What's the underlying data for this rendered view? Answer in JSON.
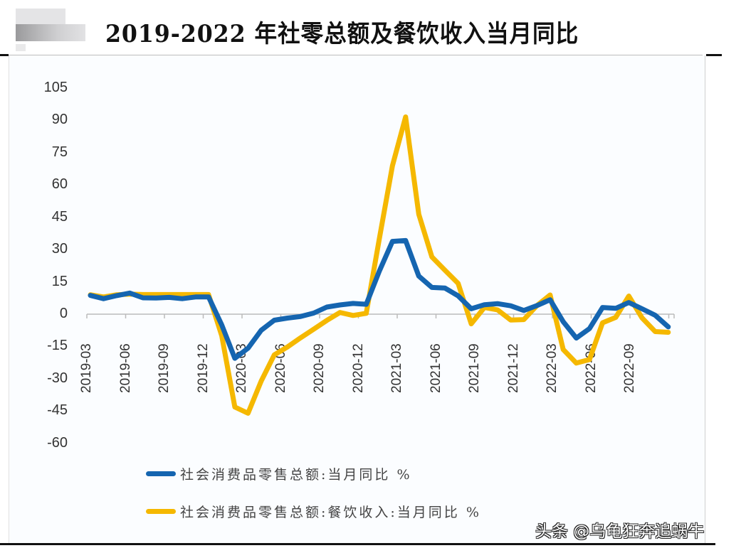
{
  "title": "2019-2022 年社零总额及餐饮收入当月同比",
  "watermark": "头条 @乌龟狂奔追蜗牛",
  "colors": {
    "retail": "#1565b0",
    "catering": "#f5b800",
    "axis": "#bbbbbb"
  },
  "legend": [
    {
      "label": "社会消费品零售总额:当月同比 %",
      "color": "#1565b0"
    },
    {
      "label": "社会消费品零售总额:餐饮收入:当月同比 %",
      "color": "#f5b800"
    }
  ],
  "chart_data": {
    "type": "line",
    "title": "2019-2022 年社零总额及餐饮收入当月同比",
    "xlabel": "",
    "ylabel": "",
    "ylim": [
      -60,
      105
    ],
    "yticks": [
      105,
      90,
      75,
      60,
      45,
      30,
      15,
      0,
      -15,
      -30,
      -45,
      -60
    ],
    "xtick_labels": [
      "2019-03",
      "2019-06",
      "2019-09",
      "2019-12",
      "2020-03",
      "2020-06",
      "2020-09",
      "2020-12",
      "2021-03",
      "2021-06",
      "2021-09",
      "2021-12",
      "2022-03",
      "2022-06",
      "2022-09"
    ],
    "grid": false,
    "legend_position": "bottom",
    "x": [
      "2019-03",
      "2019-04",
      "2019-05",
      "2019-06",
      "2019-07",
      "2019-08",
      "2019-09",
      "2019-10",
      "2019-11",
      "2019-12",
      "2020-01",
      "2020-02",
      "2020-03",
      "2020-04",
      "2020-05",
      "2020-06",
      "2020-07",
      "2020-08",
      "2020-09",
      "2020-10",
      "2020-11",
      "2020-12",
      "2021-01",
      "2021-02",
      "2021-03",
      "2021-04",
      "2021-05",
      "2021-06",
      "2021-07",
      "2021-08",
      "2021-09",
      "2021-10",
      "2021-11",
      "2021-12",
      "2022-01",
      "2022-02",
      "2022-03",
      "2022-04",
      "2022-05",
      "2022-06",
      "2022-07",
      "2022-08",
      "2022-09",
      "2022-10",
      "2022-11"
    ],
    "series": [
      {
        "name": "社会消费品零售总额:当月同比 %",
        "values": [
          8.7,
          7.2,
          8.6,
          9.8,
          7.6,
          7.5,
          7.8,
          7.2,
          8.0,
          8.0,
          -5.0,
          -20.5,
          -15.8,
          -7.5,
          -2.8,
          -1.8,
          -1.1,
          0.5,
          3.3,
          4.3,
          5.0,
          4.6,
          20.0,
          33.8,
          34.2,
          17.7,
          12.4,
          12.1,
          8.5,
          2.5,
          4.4,
          4.9,
          3.9,
          1.7,
          4.0,
          6.7,
          -3.5,
          -11.1,
          -6.7,
          3.1,
          2.7,
          5.4,
          2.5,
          -0.5,
          -5.9
        ]
      },
      {
        "name": "社会消费品零售总额:餐饮收入:当月同比 %",
        "values": [
          9.0,
          8.0,
          9.0,
          9.3,
          9.1,
          9.1,
          9.1,
          9.1,
          9.1,
          9.1,
          -10.0,
          -43.1,
          -46.0,
          -31.1,
          -18.9,
          -15.2,
          -11.0,
          -7.0,
          -2.9,
          0.8,
          -0.6,
          0.4,
          35.0,
          68.9,
          91.6,
          46.4,
          26.6,
          20.4,
          14.3,
          -4.5,
          3.1,
          2.0,
          -2.7,
          -2.5,
          4.0,
          8.9,
          -16.4,
          -22.7,
          -21.1,
          -4.0,
          -1.5,
          8.4,
          -1.7,
          -8.1,
          -8.4
        ]
      }
    ]
  }
}
